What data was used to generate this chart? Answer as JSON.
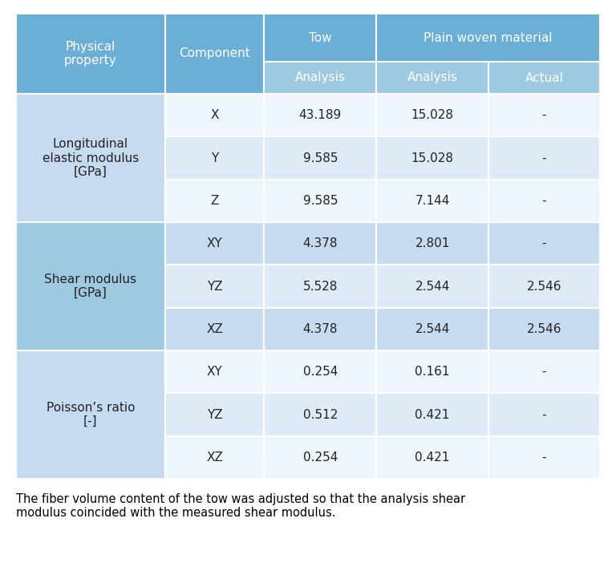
{
  "groups": [
    {
      "label": "Longitudinal\nelastic modulus\n[GPa]",
      "rows": [
        [
          "X",
          "43.189",
          "15.028",
          "-"
        ],
        [
          "Y",
          "9.585",
          "15.028",
          "-"
        ],
        [
          "Z",
          "9.585",
          "7.144",
          "-"
        ]
      ]
    },
    {
      "label": "Shear modulus\n[GPa]",
      "rows": [
        [
          "XY",
          "4.378",
          "2.801",
          "-"
        ],
        [
          "YZ",
          "5.528",
          "2.544",
          "2.546"
        ],
        [
          "XZ",
          "4.378",
          "2.544",
          "2.546"
        ]
      ]
    },
    {
      "label": "Poisson’s ratio\n[-]",
      "rows": [
        [
          "XY",
          "0.254",
          "0.161",
          "-"
        ],
        [
          "YZ",
          "0.512",
          "0.421",
          "-"
        ],
        [
          "XZ",
          "0.254",
          "0.421",
          "-"
        ]
      ]
    }
  ],
  "footer_text": "The fiber volume content of the tow was adjusted so that the analysis shear\nmodulus coincided with the measured shear modulus.",
  "col_header_dark": "#6BAED6",
  "col_header_med": "#9ECAE1",
  "col_g0_label": "#C6DBEF",
  "col_g0_even": "#EFF6FB",
  "col_g0_odd": "#DEEBF7",
  "col_g1_label": "#9ECAE1",
  "col_g1_even": "#C6DBEF",
  "col_g1_odd": "#DEEBF7",
  "col_g2_label": "#C6DBEF",
  "col_g2_even": "#EFF6FB",
  "col_g2_odd": "#DEEBF7",
  "bg": "#FFFFFF",
  "text_header": "#FFFFFF",
  "text_data": "#222222",
  "border": "#FFFFFF",
  "font_size_header": 11,
  "font_size_data": 11,
  "font_size_footer": 10.5
}
